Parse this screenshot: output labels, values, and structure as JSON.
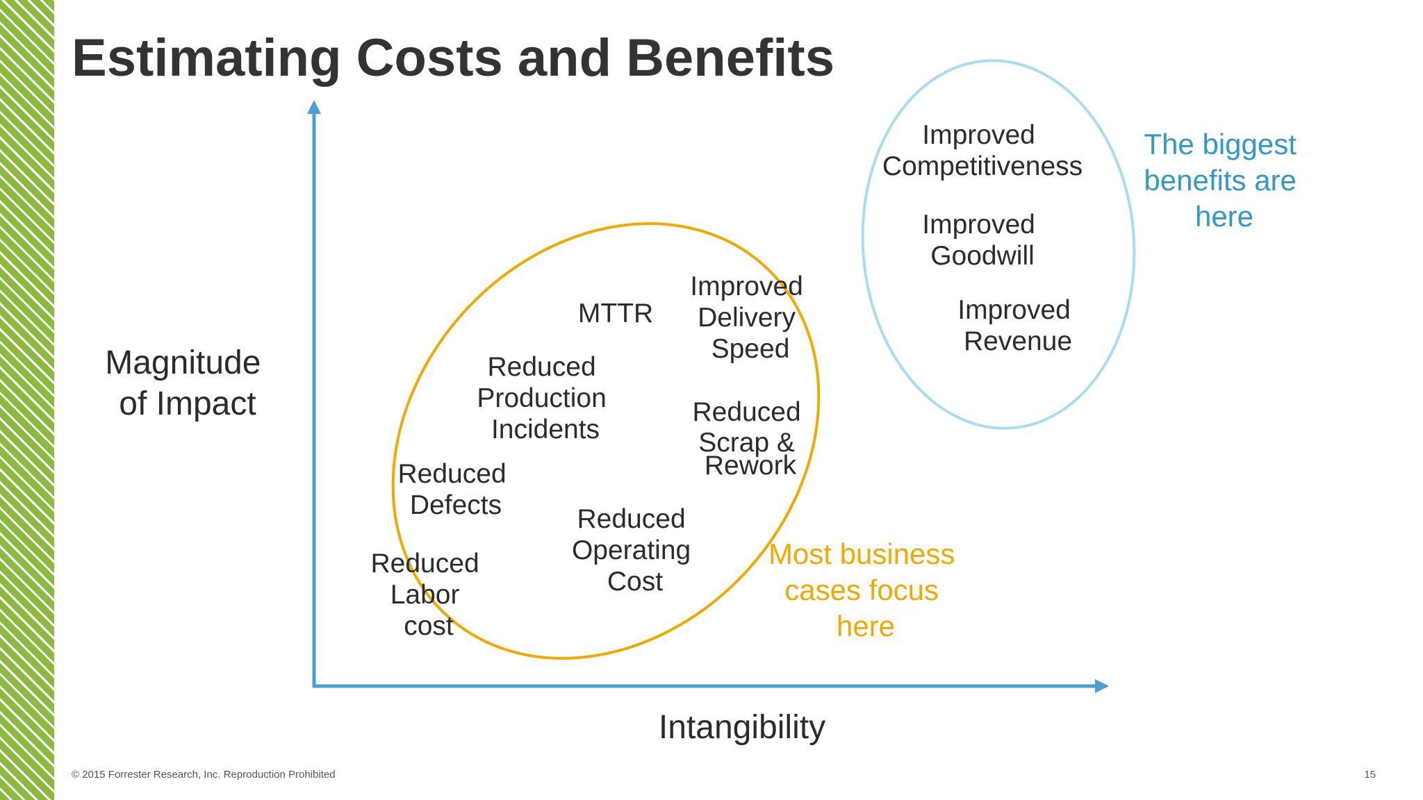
{
  "slide": {
    "title": "Estimating Costs and Benefits",
    "footer_copyright": "© 2015 Forrester Research, Inc. Reproduction Prohibited",
    "page_number": "15"
  },
  "colors": {
    "accent_green": "#8cba3f",
    "axis_blue": "#4a9fd0",
    "focus_orange": "#f2a900",
    "benefit_blue": "#a8dcf0",
    "note_blue": "#3399cc",
    "text": "#2b2b2b"
  },
  "diagram": {
    "y_axis_label": [
      "Magnitude",
      "of Impact"
    ],
    "x_axis_label": "Intangibility",
    "tangible_items": [
      {
        "id": "mttr",
        "lines": [
          "MTTR"
        ]
      },
      {
        "id": "improved-delivery-speed",
        "lines": [
          "Improved",
          "Delivery",
          "Speed"
        ]
      },
      {
        "id": "reduced-production-incidents",
        "lines": [
          "Reduced",
          "Production",
          "Incidents"
        ]
      },
      {
        "id": "reduced-scrap-rework",
        "lines": [
          "Reduced",
          "Scrap &",
          "Rework"
        ]
      },
      {
        "id": "reduced-defects",
        "lines": [
          "Reduced",
          "Defects"
        ]
      },
      {
        "id": "reduced-operating-cost",
        "lines": [
          "Reduced",
          "Operating",
          "Cost"
        ]
      },
      {
        "id": "reduced-labor-cost",
        "lines": [
          "Reduced",
          "Labor",
          "cost"
        ]
      }
    ],
    "intangible_items": [
      {
        "id": "improved-competitiveness",
        "lines": [
          "Improved",
          "Competitiveness"
        ]
      },
      {
        "id": "improved-goodwill",
        "lines": [
          "Improved",
          "Goodwill"
        ]
      },
      {
        "id": "improved-revenue",
        "lines": [
          "Improved",
          "Revenue"
        ]
      }
    ],
    "focus_note": [
      "Most business",
      "cases focus",
      "here"
    ],
    "benefit_note": [
      "The biggest",
      "benefits are",
      "here"
    ]
  }
}
